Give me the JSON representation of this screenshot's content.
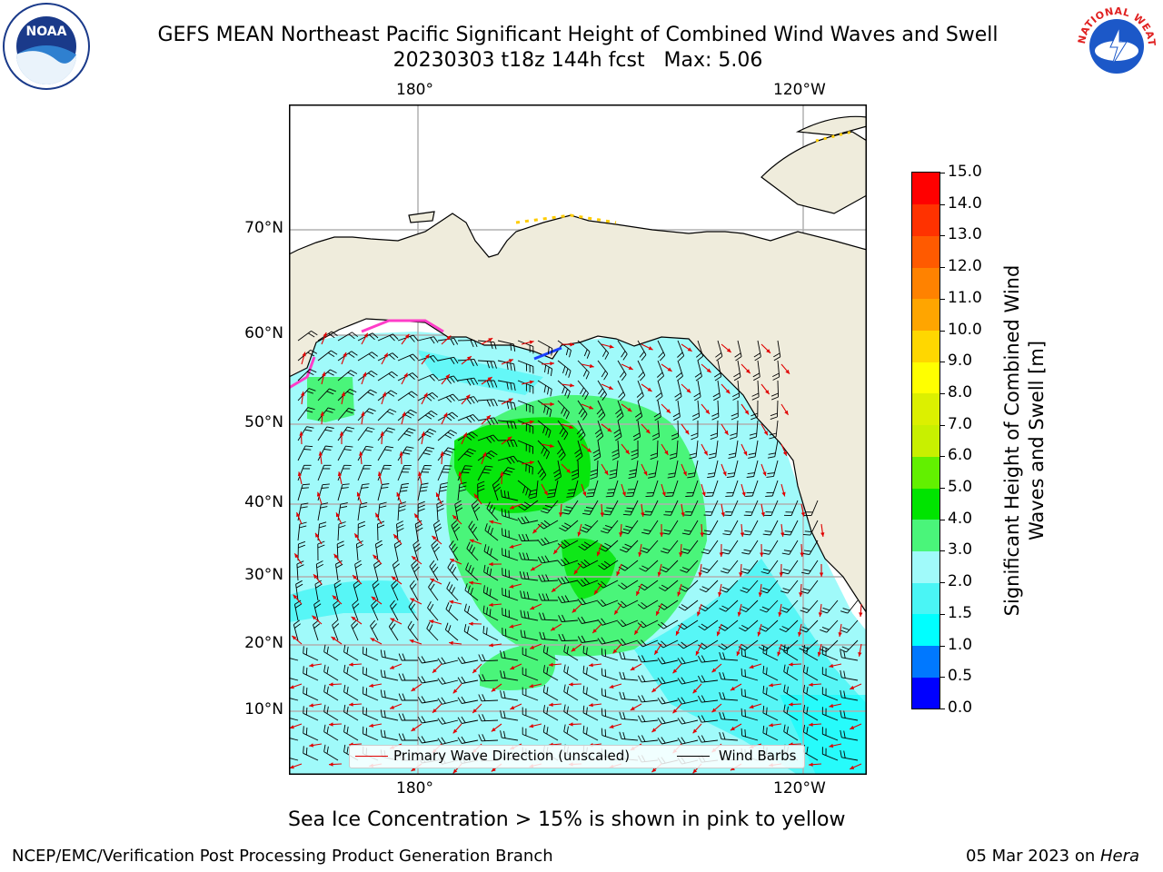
{
  "title": {
    "line1": "GEFS MEAN Northeast Pacific Significant Height of Combined Wind Waves and Swell",
    "line2": "20230303 t18z 144h fcst   Max: 5.06"
  },
  "logos": {
    "left": "NOAA",
    "right": "NATIONAL WEATHER SERVICE"
  },
  "map": {
    "top_lon_labels": [
      "180°",
      "120°W"
    ],
    "bottom_lon_labels": [
      "180°",
      "120°W"
    ],
    "lat_labels": [
      "70°N",
      "60°N",
      "50°N",
      "40°N",
      "30°N",
      "20°N",
      "10°N"
    ],
    "colors": {
      "land": "#efecdc",
      "ocean": "#ffffff",
      "grid": "#b0b0b0",
      "barb": "#000000",
      "wave_arrow": "#e00000"
    }
  },
  "legend": {
    "wave": "Primary Wave Direction (unscaled)",
    "wind": "Wind Barbs"
  },
  "colorbar": {
    "label": "Significant Height of Combined Wind Waves and Swell [m]",
    "ticks": [
      "0.0",
      "0.5",
      "1.0",
      "1.5",
      "2.0",
      "3.0",
      "4.0",
      "5.0",
      "6.0",
      "7.0",
      "8.0",
      "9.0",
      "10.0",
      "11.0",
      "12.0",
      "13.0",
      "14.0",
      "15.0"
    ],
    "colors": [
      "#0000ff",
      "#0078ff",
      "#00ffff",
      "#4af5f5",
      "#a0fafa",
      "#4af57a",
      "#00e400",
      "#62f000",
      "#c8f000",
      "#dcf000",
      "#ffff00",
      "#ffd700",
      "#ffa500",
      "#ff8200",
      "#ff5a00",
      "#ff3200",
      "#ff0000"
    ]
  },
  "subtitle": "Sea Ice Concentration > 15% is shown in pink to yellow",
  "footer": {
    "left": "NCEP/EMC/Verification Post Processing Product Generation Branch",
    "right_date": "05 Mar 2023 on ",
    "right_machine": "Hera"
  }
}
